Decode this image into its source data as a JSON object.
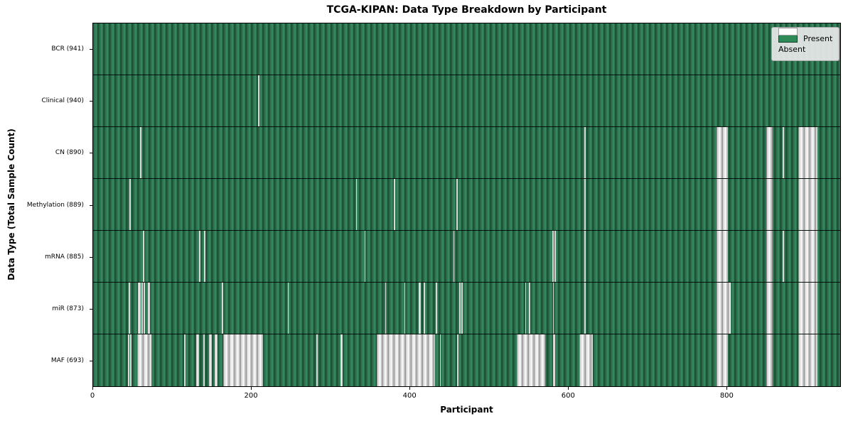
{
  "title": "TCGA-KIPAN: Data Type Breakdown by Participant",
  "xlabel": "Participant",
  "ylabel": "Data Type (Total Sample Count)",
  "legend": {
    "present_label": "Present",
    "absent_label": "Absent"
  },
  "colors": {
    "present_green": "#2e8b57",
    "present_dark": "#1f5237",
    "present_light": "#398560",
    "absent_white": "#f2f2f2",
    "absent_gray": "#b5b5b5",
    "legend_bg": "#e9e9e9"
  },
  "chart_data": {
    "type": "heatmap",
    "title": "TCGA-KIPAN: Data Type Breakdown by Participant",
    "xlabel": "Participant",
    "ylabel": "Data Type (Total Sample Count)",
    "legend_entries": [
      "Present",
      "Absent"
    ],
    "legend_position": "upper right",
    "x_axis": {
      "ticks": [
        0,
        200,
        400,
        600,
        800
      ],
      "max": 944
    },
    "n_participants": 941,
    "rows": [
      {
        "name": "BCR",
        "label": "BCR (941)",
        "count": 941,
        "absent_ranges": []
      },
      {
        "name": "Clinical",
        "label": "Clinical (940)",
        "count": 940,
        "absent_ranges": [
          [
            208,
            210
          ]
        ]
      },
      {
        "name": "CN",
        "label": "CN (890)",
        "count": 890,
        "absent_ranges": [
          [
            59,
            61
          ],
          [
            621,
            622
          ],
          [
            788,
            802
          ],
          [
            851,
            859
          ],
          [
            871,
            873
          ],
          [
            891,
            915
          ]
        ]
      },
      {
        "name": "Methylation",
        "label": "Methylation (889)",
        "count": 889,
        "absent_ranges": [
          [
            46,
            48
          ],
          [
            332,
            333
          ],
          [
            380,
            382
          ],
          [
            459,
            461
          ],
          [
            621,
            622
          ],
          [
            788,
            802
          ],
          [
            851,
            859
          ],
          [
            891,
            915
          ]
        ]
      },
      {
        "name": "mRNA",
        "label": "mRNA (885)",
        "count": 885,
        "absent_ranges": [
          [
            63,
            65
          ],
          [
            134,
            135
          ],
          [
            140,
            142
          ],
          [
            343,
            344
          ],
          [
            455,
            456
          ],
          [
            580,
            582
          ],
          [
            583,
            585
          ],
          [
            621,
            622
          ],
          [
            871,
            873
          ],
          [
            788,
            802
          ],
          [
            851,
            859
          ],
          [
            891,
            915
          ]
        ]
      },
      {
        "name": "miR",
        "label": "miR (873)",
        "count": 873,
        "absent_ranges": [
          [
            45,
            46
          ],
          [
            57,
            60
          ],
          [
            61,
            63
          ],
          [
            64,
            66
          ],
          [
            69,
            72
          ],
          [
            163,
            164
          ],
          [
            246,
            247
          ],
          [
            369,
            370
          ],
          [
            393,
            394
          ],
          [
            411,
            414
          ],
          [
            418,
            419
          ],
          [
            433,
            434
          ],
          [
            463,
            464
          ],
          [
            465,
            467
          ],
          [
            546,
            547
          ],
          [
            551,
            552
          ],
          [
            581,
            582
          ],
          [
            621,
            622
          ],
          [
            788,
            806
          ],
          [
            851,
            859
          ],
          [
            891,
            915
          ]
        ]
      },
      {
        "name": "MAF",
        "label": "MAF (693)",
        "count": 693,
        "absent_ranges": [
          [
            44,
            45
          ],
          [
            47,
            48
          ],
          [
            56,
            74
          ],
          [
            115,
            116
          ],
          [
            130,
            134
          ],
          [
            139,
            141
          ],
          [
            146,
            150
          ],
          [
            154,
            157
          ],
          [
            164,
            215
          ],
          [
            282,
            284
          ],
          [
            313,
            315
          ],
          [
            358,
            432
          ],
          [
            438,
            439
          ],
          [
            460,
            461
          ],
          [
            535,
            571
          ],
          [
            581,
            584
          ],
          [
            614,
            631
          ],
          [
            788,
            802
          ],
          [
            851,
            859
          ],
          [
            891,
            915
          ]
        ]
      }
    ]
  }
}
